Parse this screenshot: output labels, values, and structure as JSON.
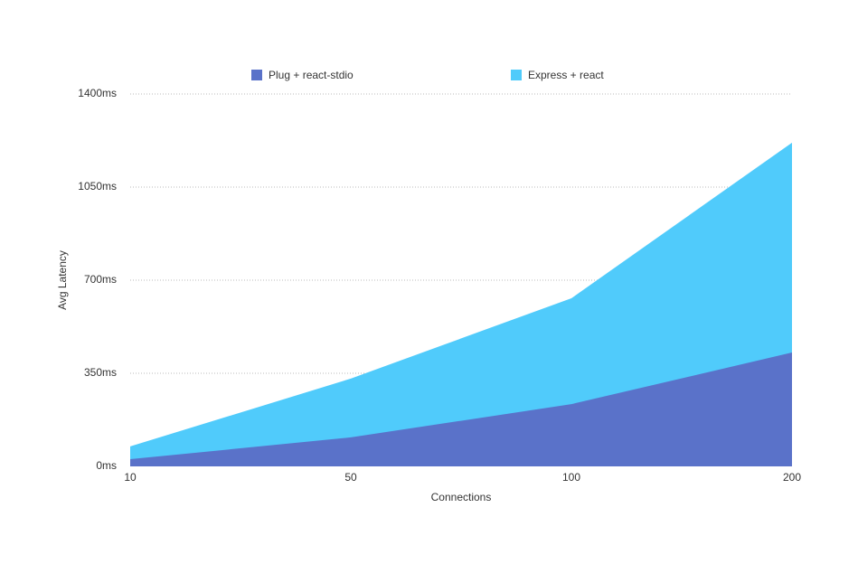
{
  "chart_data": {
    "type": "area",
    "x_label": "Connections",
    "y_label": "Avg Latency",
    "categories": [
      "10",
      "50",
      "100",
      "200"
    ],
    "series": [
      {
        "name": "Plug + react-stdio",
        "color": "#5a72c9",
        "values": [
          27,
          109,
          234,
          428
        ]
      },
      {
        "name": "Express + react",
        "color": "#50cbfb",
        "values": [
          75,
          330,
          632,
          1217
        ]
      }
    ],
    "ylim": [
      0,
      1400
    ],
    "yticks": [
      {
        "value": 0,
        "label": "0ms"
      },
      {
        "value": 350,
        "label": "350ms"
      },
      {
        "value": 700,
        "label": "700ms"
      },
      {
        "value": 1050,
        "label": "1050ms"
      },
      {
        "value": 1400,
        "label": "1400ms"
      }
    ],
    "grid": true,
    "legend": "top"
  }
}
